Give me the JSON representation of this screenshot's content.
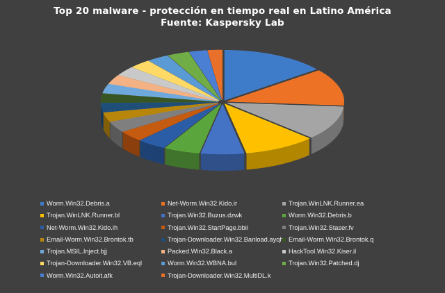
{
  "title_line1": "Top 20 malware - protección en tiempo real en Latino América",
  "title_line2": "Fuente: Kaspersky Lab",
  "chart_data": {
    "type": "pie",
    "style": "3d-exploded",
    "title": "Top 20 malware - protección en tiempo real en Latino América",
    "subtitle": "Fuente: Kaspersky Lab",
    "legend_position": "bottom",
    "series": [
      {
        "name": "Worm.Win32.Debris.a",
        "value": 14.5,
        "color": "#3E7CC9"
      },
      {
        "name": "Net-Worm.Win32.Kido.ir",
        "value": 12.0,
        "color": "#ED7225"
      },
      {
        "name": "Trojan.WinLNK.Runner.ea",
        "value": 11.0,
        "color": "#A5A5A5"
      },
      {
        "name": "Trojan.WinLNK.Runner.bl",
        "value": 10.0,
        "color": "#FFC000"
      },
      {
        "name": "Trojan.Win32.Buzus.dzwk",
        "value": 6.0,
        "color": "#4472C4"
      },
      {
        "name": "Worm.Win32.Debris.b",
        "value": 5.0,
        "color": "#5BA53D"
      },
      {
        "name": "Net-Worm.Win32.Kido.ih",
        "value": 4.0,
        "color": "#2B5DA6"
      },
      {
        "name": "Trojan.Win32.StartPage.bbii",
        "value": 3.5,
        "color": "#C55A11"
      },
      {
        "name": "Trojan.Win32.Staser.fv",
        "value": 3.5,
        "color": "#7F7F7F"
      },
      {
        "name": "Email-Worm.Win32.Brontok.tb",
        "value": 3.0,
        "color": "#B8860B"
      },
      {
        "name": "Trojan-Downloader.Win32.Banload.ayqh",
        "value": 3.0,
        "color": "#1F4E79"
      },
      {
        "name": "Email-Worm.Win32.Brontok.q",
        "value": 3.0,
        "color": "#375623"
      },
      {
        "name": "Trojan.MSIL.Inject.bjj",
        "value": 3.0,
        "color": "#6FA8DC"
      },
      {
        "name": "Packed.Win32.Black.a",
        "value": 3.0,
        "color": "#F4B183"
      },
      {
        "name": "HackTool.Win32.Kiser.il",
        "value": 3.0,
        "color": "#C9C9C9"
      },
      {
        "name": "Trojan-Downloader.Win32.VB.eql",
        "value": 3.0,
        "color": "#FFD966"
      },
      {
        "name": "Worm.Win32.WBNA.bul",
        "value": 3.0,
        "color": "#5B9BD5"
      },
      {
        "name": "Trojan.Win32.Patched.dj",
        "value": 3.0,
        "color": "#70AD47"
      },
      {
        "name": "Worm.Win32.Autoit.afk",
        "value": 2.5,
        "color": "#4A7FD4"
      },
      {
        "name": "Trojan-Downloader.Win32.MultiDL.k",
        "value": 2.0,
        "color": "#E8702A"
      }
    ]
  }
}
